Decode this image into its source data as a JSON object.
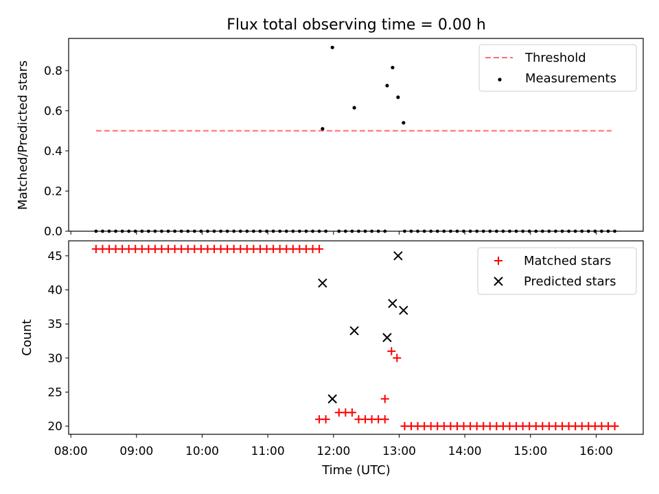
{
  "title": "Flux total observing time = 0.00 h",
  "chart_data": [
    {
      "type": "scatter",
      "ylabel": "Matched/Predicted stars",
      "ylim": [
        0,
        0.96
      ],
      "xlim": [
        "07:58",
        "16:43"
      ],
      "yticks": [
        "0.0",
        "0.2",
        "0.4",
        "0.6",
        "0.8"
      ],
      "legend_position": "top-right",
      "threshold": {
        "name": "Threshold",
        "value": 0.5,
        "x_range": [
          "08:23",
          "16:14"
        ],
        "color": "#ff6b6b"
      },
      "measurements": {
        "name": "Measurements",
        "color": "#000000",
        "zero_times": [
          "08:23",
          "08:29",
          "08:35",
          "08:41",
          "08:47",
          "08:53",
          "08:59",
          "09:05",
          "09:11",
          "09:17",
          "09:23",
          "09:29",
          "09:35",
          "09:41",
          "09:47",
          "09:53",
          "09:59",
          "10:05",
          "10:11",
          "10:17",
          "10:23",
          "10:29",
          "10:35",
          "10:41",
          "10:47",
          "10:53",
          "10:59",
          "11:05",
          "11:11",
          "11:17",
          "11:23",
          "11:29",
          "11:35",
          "11:41",
          "11:47",
          "11:53",
          "12:05",
          "12:11",
          "12:17",
          "12:23",
          "12:29",
          "12:35",
          "12:41",
          "12:47",
          "13:05",
          "13:11",
          "13:17",
          "13:23",
          "13:29",
          "13:35",
          "13:41",
          "13:47",
          "13:53",
          "13:59",
          "14:05",
          "14:11",
          "14:17",
          "14:23",
          "14:29",
          "14:35",
          "14:41",
          "14:47",
          "14:53",
          "14:59",
          "15:05",
          "15:11",
          "15:17",
          "15:23",
          "15:29",
          "15:35",
          "15:41",
          "15:47",
          "15:53",
          "15:59",
          "16:05",
          "16:11",
          "16:17"
        ],
        "points": [
          {
            "x": "11:50",
            "y": 0.51
          },
          {
            "x": "11:59",
            "y": 0.915
          },
          {
            "x": "12:19",
            "y": 0.615
          },
          {
            "x": "12:49",
            "y": 0.725
          },
          {
            "x": "12:54",
            "y": 0.815
          },
          {
            "x": "12:59",
            "y": 0.667
          },
          {
            "x": "13:04",
            "y": 0.54
          }
        ]
      }
    },
    {
      "type": "scatter",
      "xlabel": "Time (UTC)",
      "ylabel": "Count",
      "ylim": [
        18.8,
        47.2
      ],
      "xlim": [
        "07:58",
        "16:43"
      ],
      "yticks": [
        "20",
        "25",
        "30",
        "35",
        "40",
        "45"
      ],
      "xticks": [
        "08:00",
        "09:00",
        "10:00",
        "11:00",
        "12:00",
        "13:00",
        "14:00",
        "15:00",
        "16:00"
      ],
      "legend_position": "top-right",
      "series": [
        {
          "name": "Matched stars",
          "marker": "+",
          "color": "#ff0000",
          "runs": [
            {
              "start": "08:23",
              "end": "11:47",
              "step_min": 6,
              "y": 46
            },
            {
              "start": "12:05",
              "end": "12:17",
              "step_min": 6,
              "y": 22
            },
            {
              "start": "12:23",
              "end": "12:47",
              "step_min": 6,
              "y": 21
            },
            {
              "start": "13:05",
              "end": "16:17",
              "step_min": 6,
              "y": 20
            }
          ],
          "points": [
            {
              "x": "11:47",
              "y": 21
            },
            {
              "x": "11:53",
              "y": 21
            },
            {
              "x": "12:47",
              "y": 24
            },
            {
              "x": "12:53",
              "y": 31
            },
            {
              "x": "12:58",
              "y": 30
            }
          ]
        },
        {
          "name": "Predicted stars",
          "marker": "x",
          "color": "#000000",
          "points": [
            {
              "x": "11:50",
              "y": 41
            },
            {
              "x": "11:59",
              "y": 24
            },
            {
              "x": "12:19",
              "y": 34
            },
            {
              "x": "12:49",
              "y": 33
            },
            {
              "x": "12:54",
              "y": 38
            },
            {
              "x": "12:59",
              "y": 45
            },
            {
              "x": "13:04",
              "y": 37
            }
          ]
        }
      ]
    }
  ]
}
